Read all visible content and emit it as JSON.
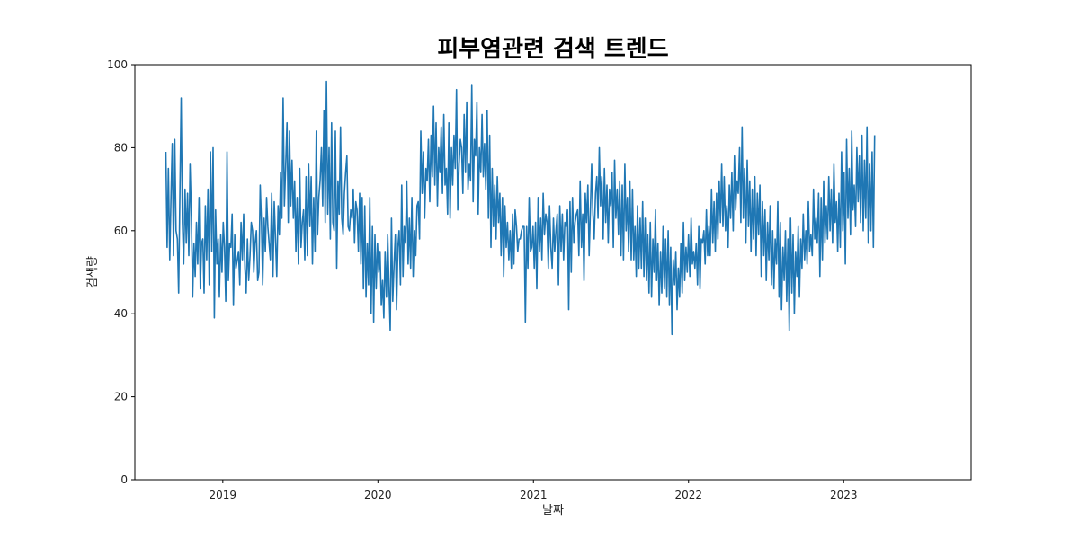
{
  "chart_data": {
    "type": "line",
    "title": "피부염관련 검색 트렌드",
    "xlabel": "날짜",
    "ylabel": "검색량",
    "ylim": [
      0,
      100
    ],
    "xlim": [
      "2018-06-08",
      "2023-10-28"
    ],
    "x_tick_labels": [
      {
        "date": "2019-01-01",
        "label": "2019"
      },
      {
        "date": "2020-01-01",
        "label": "2020"
      },
      {
        "date": "2021-01-01",
        "label": "2021"
      },
      {
        "date": "2022-01-01",
        "label": "2022"
      },
      {
        "date": "2023-01-01",
        "label": "2023"
      }
    ],
    "y_ticks": [
      0,
      20,
      40,
      60,
      80,
      100
    ],
    "grid": false,
    "line_color": "#1f77b4",
    "series": [
      {
        "name": "",
        "x_start": "2018-08-20",
        "x_step_days": 3,
        "values": [
          79,
          56,
          75,
          53,
          68,
          81,
          54,
          82,
          60,
          58,
          45,
          69,
          92,
          62,
          52,
          70,
          57,
          69,
          54,
          76,
          63,
          44,
          57,
          49,
          62,
          52,
          68,
          46,
          57,
          58,
          45,
          66,
          53,
          70,
          47,
          79,
          55,
          80,
          39,
          65,
          52,
          58,
          44,
          59,
          50,
          62,
          56,
          43,
          79,
          48,
          57,
          56,
          64,
          42,
          59,
          51,
          53,
          55,
          47,
          62,
          53,
          64,
          51,
          45,
          58,
          48,
          54,
          62,
          60,
          50,
          57,
          60,
          48,
          50,
          71,
          62,
          47,
          63,
          55,
          68,
          61,
          57,
          53,
          69,
          49,
          67,
          58,
          49,
          66,
          59,
          74,
          63,
          92,
          66,
          76,
          86,
          62,
          84,
          66,
          77,
          63,
          72,
          55,
          68,
          52,
          75,
          56,
          62,
          65,
          53,
          73,
          54,
          76,
          61,
          73,
          52,
          68,
          55,
          84,
          59,
          68,
          72,
          80,
          66,
          89,
          62,
          96,
          64,
          80,
          58,
          86,
          62,
          60,
          84,
          51,
          72,
          64,
          85,
          63,
          59,
          69,
          74,
          78,
          61,
          60,
          65,
          63,
          70,
          57,
          67,
          65,
          55,
          69,
          52,
          68,
          46,
          66,
          44,
          57,
          47,
          68,
          40,
          61,
          38,
          59,
          46,
          57,
          50,
          55,
          42,
          48,
          39,
          55,
          44,
          59,
          47,
          36,
          63,
          43,
          52,
          59,
          41,
          56,
          60,
          47,
          71,
          49,
          61,
          57,
          72,
          52,
          63,
          51,
          68,
          49,
          60,
          54,
          66,
          67,
          58,
          84,
          69,
          79,
          63,
          75,
          72,
          82,
          67,
          83,
          73,
          90,
          71,
          86,
          66,
          80,
          74,
          85,
          69,
          88,
          71,
          75,
          64,
          86,
          63,
          80,
          71,
          83,
          75,
          94,
          65,
          76,
          82,
          80,
          69,
          88,
          74,
          91,
          70,
          76,
          72,
          95,
          67,
          82,
          78,
          91,
          64,
          80,
          74,
          88,
          73,
          81,
          70,
          89,
          63,
          83,
          56,
          75,
          61,
          71,
          58,
          73,
          62,
          69,
          54,
          68,
          49,
          66,
          56,
          62,
          53,
          60,
          51,
          64,
          52,
          65,
          61,
          55,
          58,
          58,
          60,
          61,
          61,
          38,
          61,
          51,
          68,
          55,
          56,
          61,
          51,
          62,
          46,
          68,
          55,
          63,
          53,
          69,
          59,
          64,
          62,
          51,
          66,
          56,
          51,
          63,
          55,
          60,
          64,
          47,
          66,
          55,
          64,
          53,
          62,
          61,
          65,
          41,
          67,
          50,
          68,
          57,
          62,
          64,
          65,
          54,
          72,
          56,
          64,
          48,
          69,
          62,
          71,
          54,
          65,
          76,
          64,
          58,
          69,
          73,
          63,
          80,
          66,
          73,
          58,
          75,
          62,
          71,
          57,
          70,
          66,
          74,
          56,
          77,
          63,
          70,
          59,
          72,
          54,
          71,
          53,
          76,
          60,
          68,
          55,
          72,
          53,
          70,
          53,
          61,
          49,
          66,
          51,
          63,
          51,
          67,
          49,
          63,
          48,
          59,
          45,
          62,
          44,
          58,
          50,
          65,
          48,
          57,
          42,
          55,
          45,
          61,
          46,
          58,
          44,
          60,
          42,
          56,
          35,
          53,
          47,
          55,
          41,
          51,
          44,
          57,
          45,
          62,
          48,
          56,
          50,
          59,
          49,
          63,
          52,
          55,
          51,
          57,
          47,
          61,
          46,
          58,
          57,
          60,
          52,
          65,
          54,
          61,
          54,
          70,
          57,
          67,
          55,
          69,
          58,
          72,
          62,
          76,
          61,
          73,
          60,
          66,
          56,
          71,
          63,
          74,
          60,
          78,
          65,
          72,
          69,
          80,
          62,
          85,
          63,
          75,
          57,
          77,
          61,
          72,
          55,
          70,
          58,
          73,
          54,
          69,
          59,
          71,
          49,
          67,
          54,
          65,
          48,
          62,
          53,
          66,
          47,
          60,
          46,
          58,
          52,
          67,
          44,
          62,
          41,
          56,
          48,
          60,
          43,
          58,
          36,
          63,
          45,
          59,
          40,
          55,
          49,
          61,
          44,
          58,
          51,
          64,
          53,
          60,
          52,
          67,
          55,
          59,
          54,
          70,
          58,
          63,
          57,
          69,
          49,
          68,
          53,
          72,
          57,
          66,
          58,
          73,
          60,
          70,
          57,
          76,
          62,
          67,
          55,
          69,
          56,
          79,
          60,
          74,
          52,
          82,
          63,
          75,
          59,
          84,
          65,
          71,
          61,
          80,
          67,
          78,
          62,
          83,
          60,
          77,
          63,
          85,
          57,
          76,
          60,
          79,
          56,
          83
        ]
      }
    ]
  }
}
